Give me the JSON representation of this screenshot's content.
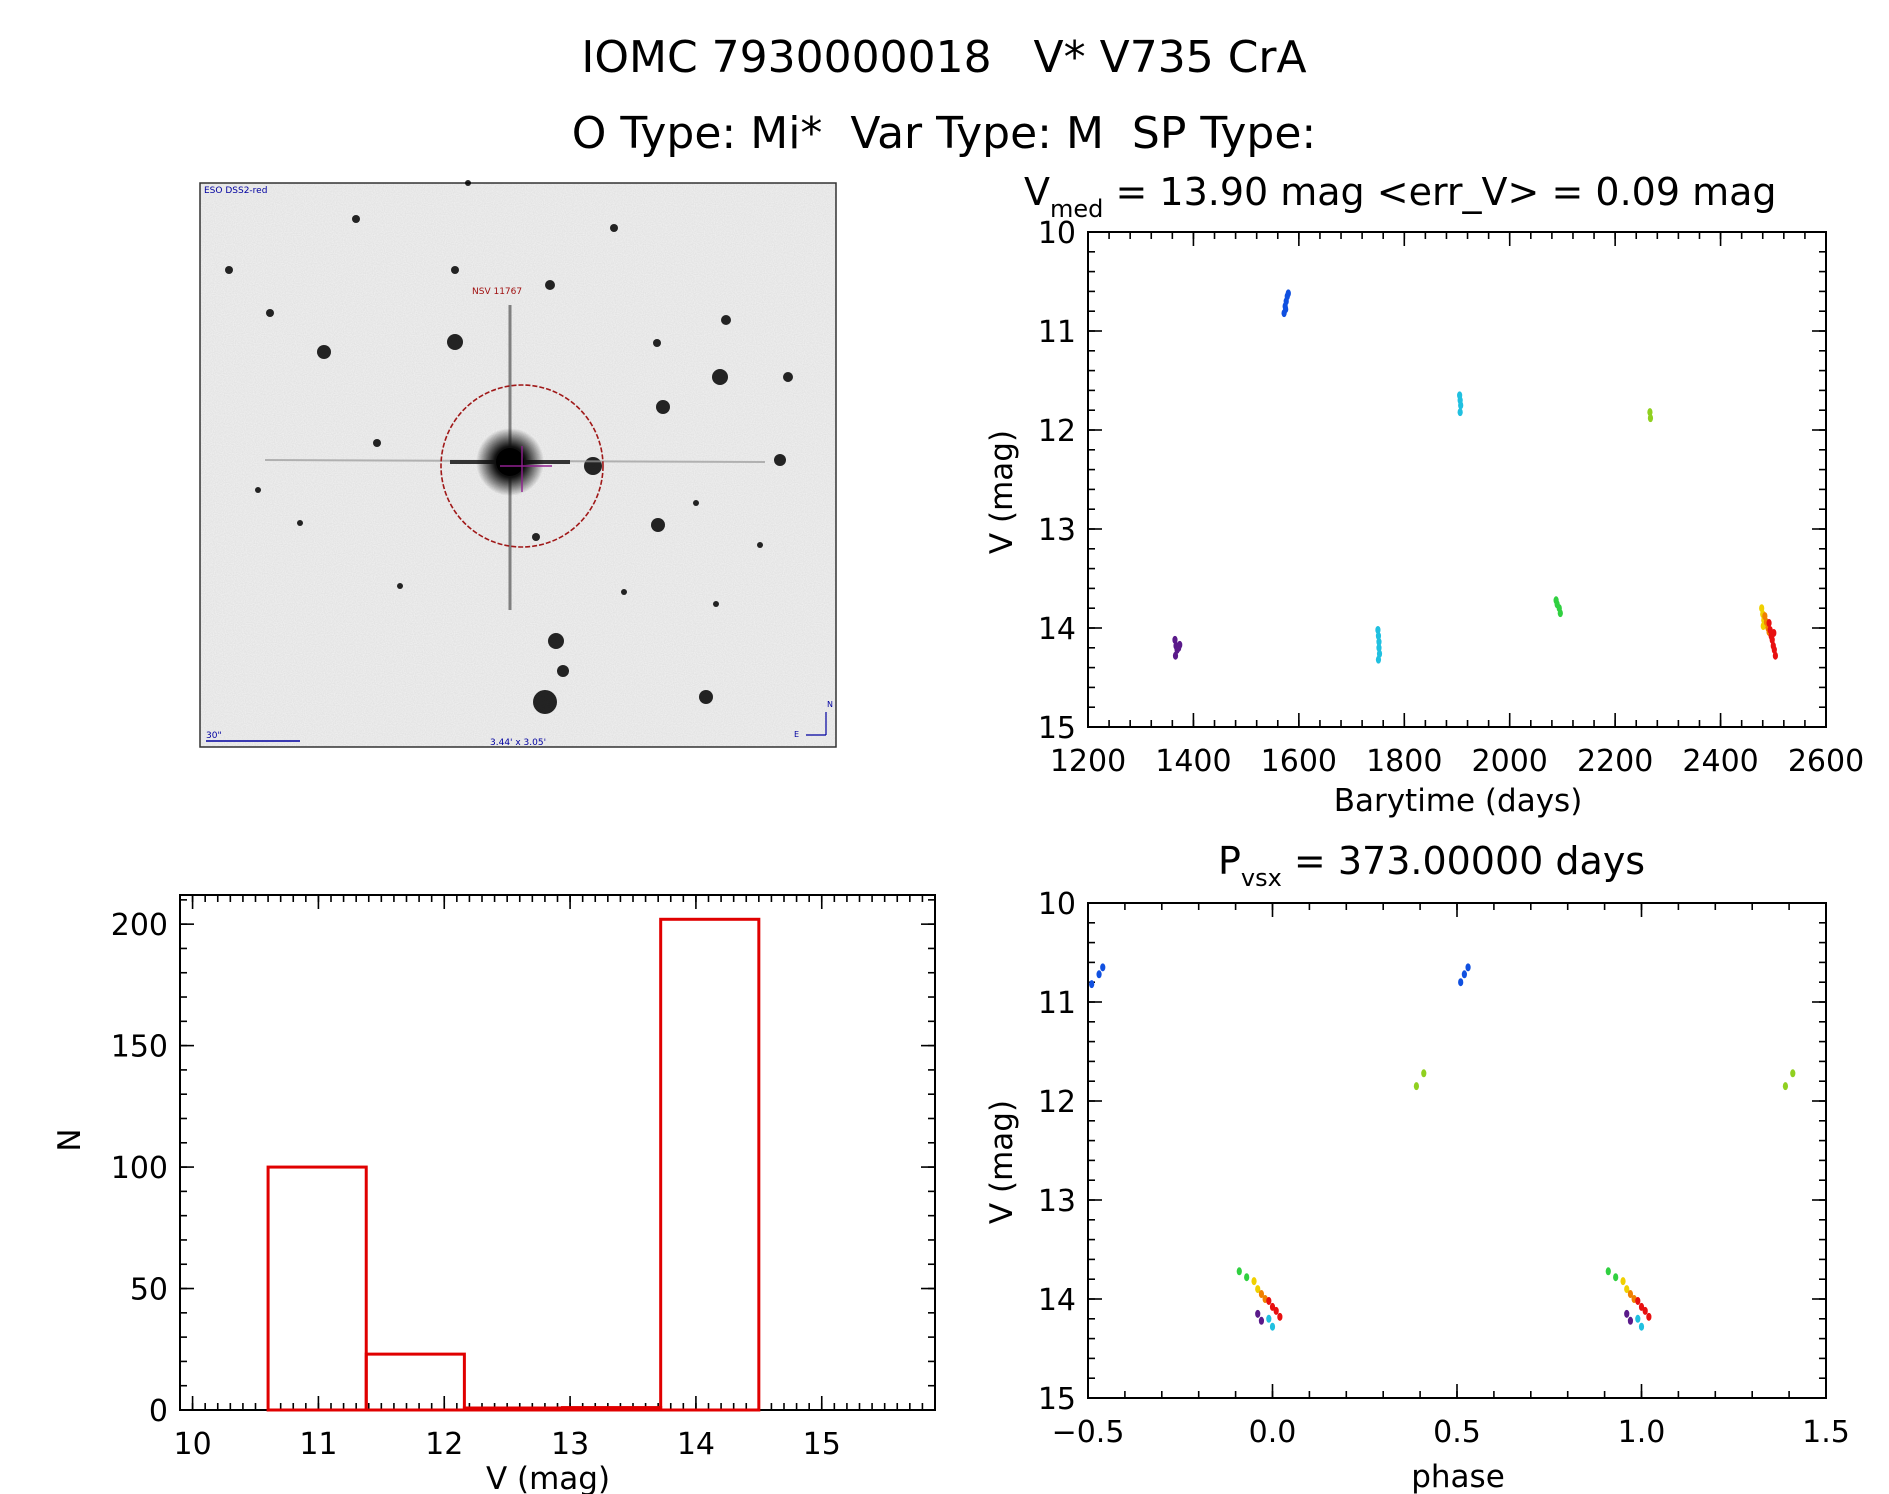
{
  "header": {
    "line1": "IOMC 7930000018   V* V735 CrA",
    "line2": "O Type: Mi*  Var Type: M  SP Type:"
  },
  "finder": {
    "label_top": "ESO DSS2-red",
    "target_label": "NSV 11767",
    "scale_label": "30\"",
    "fov_label": "3.44' x 3.05'",
    "north": "N",
    "east": "E"
  },
  "chart_data": [
    {
      "id": "lightcurve",
      "type": "scatter",
      "title_main": "V",
      "title_sub": "med",
      "title_rest": " = 13.90 mag <err_V> = 0.09 mag",
      "xlabel": "Barytime (days)",
      "ylabel": "V (mag)",
      "xlim": [
        1200,
        2600
      ],
      "ylim": [
        10,
        15
      ],
      "y_inverted": true,
      "xticks": [
        1200,
        1400,
        1600,
        1800,
        2000,
        2200,
        2400,
        2600
      ],
      "yticks": [
        10,
        11,
        12,
        13,
        14,
        15
      ],
      "groups": [
        {
          "color": "#5a1a8a",
          "points": [
            [
              1365,
              14.12
            ],
            [
              1367,
              14.18
            ],
            [
              1369,
              14.22
            ],
            [
              1372,
              14.2
            ],
            [
              1374,
              14.17
            ],
            [
              1366,
              14.28
            ]
          ]
        },
        {
          "color": "#1050e0",
          "points": [
            [
              1572,
              10.82
            ],
            [
              1574,
              10.75
            ],
            [
              1576,
              10.7
            ],
            [
              1578,
              10.65
            ],
            [
              1580,
              10.62
            ],
            [
              1575,
              10.78
            ]
          ]
        },
        {
          "color": "#20c0e0",
          "points": [
            [
              1750,
              14.02
            ],
            [
              1751,
              14.08
            ],
            [
              1752,
              14.14
            ],
            [
              1752,
              14.2
            ],
            [
              1753,
              14.26
            ],
            [
              1751,
              14.32
            ],
            [
              1905,
              11.65
            ],
            [
              1906,
              11.7
            ],
            [
              1907,
              11.75
            ],
            [
              1906,
              11.82
            ]
          ]
        },
        {
          "color": "#30d040",
          "points": [
            [
              2088,
              13.72
            ],
            [
              2090,
              13.76
            ],
            [
              2094,
              13.8
            ],
            [
              2096,
              13.85
            ]
          ]
        },
        {
          "color": "#90d020",
          "points": [
            [
              2266,
              11.82
            ],
            [
              2267,
              11.88
            ]
          ]
        },
        {
          "color": "#f0d000",
          "points": [
            [
              2478,
              13.8
            ],
            [
              2480,
              13.86
            ],
            [
              2482,
              13.92
            ],
            [
              2481,
              13.98
            ]
          ]
        },
        {
          "color": "#f08000",
          "points": [
            [
              2484,
              13.88
            ],
            [
              2487,
              13.94
            ],
            [
              2490,
              14.0
            ],
            [
              2492,
              14.04
            ]
          ]
        },
        {
          "color": "#e81010",
          "points": [
            [
              2492,
              13.95
            ],
            [
              2494,
              14.02
            ],
            [
              2496,
              14.08
            ],
            [
              2498,
              14.12
            ],
            [
              2500,
              14.18
            ],
            [
              2502,
              14.22
            ],
            [
              2504,
              14.28
            ],
            [
              2501,
              14.05
            ]
          ]
        }
      ]
    },
    {
      "id": "phased",
      "type": "scatter",
      "title_main": "P",
      "title_sub": "vsx",
      "title_rest": " = 373.00000 days",
      "xlabel": "phase",
      "ylabel": "V (mag)",
      "xlim": [
        -0.5,
        1.5
      ],
      "ylim": [
        10,
        15
      ],
      "y_inverted": true,
      "xticks": [
        -0.5,
        0.0,
        0.5,
        1.0,
        1.5
      ],
      "xticklabels": [
        "−0.5",
        "0.0",
        "0.5",
        "1.0",
        "1.5"
      ],
      "yticks": [
        10,
        11,
        12,
        13,
        14,
        15
      ],
      "groups": [
        {
          "color": "#1050e0",
          "points": [
            [
              -0.49,
              10.82
            ],
            [
              -0.47,
              10.72
            ],
            [
              -0.46,
              10.65
            ],
            [
              0.51,
              10.8
            ],
            [
              0.52,
              10.72
            ],
            [
              0.53,
              10.65
            ]
          ]
        },
        {
          "color": "#90d020",
          "points": [
            [
              0.39,
              11.85
            ],
            [
              0.41,
              11.72
            ],
            [
              1.39,
              11.85
            ],
            [
              1.41,
              11.72
            ]
          ]
        },
        {
          "color": "#30d040",
          "points": [
            [
              -0.09,
              13.72
            ],
            [
              -0.07,
              13.78
            ],
            [
              0.91,
              13.72
            ],
            [
              0.93,
              13.78
            ]
          ]
        },
        {
          "color": "#f0d000",
          "points": [
            [
              -0.05,
              13.82
            ],
            [
              -0.04,
              13.9
            ],
            [
              0.95,
              13.82
            ],
            [
              0.96,
              13.9
            ]
          ]
        },
        {
          "color": "#f08000",
          "points": [
            [
              -0.03,
              13.95
            ],
            [
              -0.02,
              14.0
            ],
            [
              0.97,
              13.95
            ],
            [
              0.98,
              14.0
            ]
          ]
        },
        {
          "color": "#e81010",
          "points": [
            [
              -0.01,
              14.02
            ],
            [
              0.0,
              14.08
            ],
            [
              0.01,
              14.12
            ],
            [
              0.02,
              14.18
            ],
            [
              0.99,
              14.02
            ],
            [
              1.0,
              14.08
            ],
            [
              1.01,
              14.12
            ],
            [
              1.02,
              14.18
            ]
          ]
        },
        {
          "color": "#20c0e0",
          "points": [
            [
              -0.01,
              14.2
            ],
            [
              0.0,
              14.28
            ],
            [
              0.99,
              14.2
            ],
            [
              1.0,
              14.28
            ]
          ]
        },
        {
          "color": "#5a1a8a",
          "points": [
            [
              -0.04,
              14.15
            ],
            [
              -0.03,
              14.22
            ],
            [
              0.96,
              14.15
            ],
            [
              0.97,
              14.22
            ]
          ]
        }
      ]
    },
    {
      "id": "histogram",
      "type": "bar",
      "xlabel": "V (mag)",
      "ylabel": "N",
      "xlim": [
        9.9,
        15.9
      ],
      "ylim": [
        0,
        212
      ],
      "xticks": [
        10,
        11,
        12,
        13,
        14,
        15
      ],
      "yticks": [
        0,
        50,
        100,
        150,
        200
      ],
      "bars": [
        {
          "x0": 10.6,
          "x1": 11.38,
          "count": 100
        },
        {
          "x0": 11.38,
          "x1": 12.16,
          "count": 23
        },
        {
          "x0": 12.16,
          "x1": 12.94,
          "count": 0
        },
        {
          "x0": 12.94,
          "x1": 13.72,
          "count": 1
        },
        {
          "x0": 13.72,
          "x1": 14.5,
          "count": 202
        }
      ],
      "bar_color": "#e00000"
    }
  ]
}
